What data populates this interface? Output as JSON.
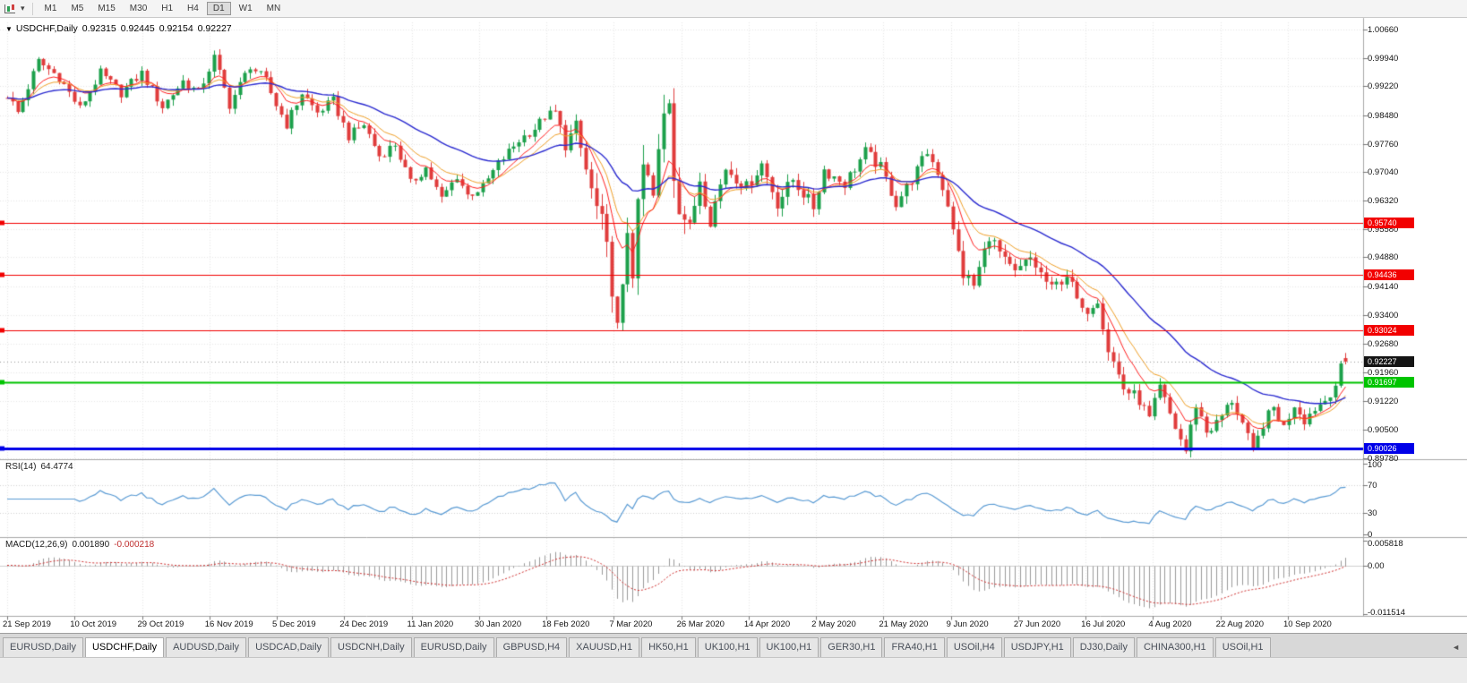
{
  "toolbar": {
    "timeframes": [
      "M1",
      "M5",
      "M15",
      "M30",
      "H1",
      "H4",
      "D1",
      "W1",
      "MN"
    ],
    "active_timeframe": "D1"
  },
  "chart_header": {
    "symbol": "USDCHF,Daily",
    "open": "0.92315",
    "high": "0.92445",
    "low": "0.92154",
    "close": "0.92227",
    "dropdown_glyph": "▼"
  },
  "rsi_panel": {
    "label": "RSI(14)",
    "value": "64.4774",
    "scale": [
      "100",
      "70",
      "30",
      "0"
    ]
  },
  "macd_panel": {
    "label": "MACD(12,26,9)",
    "value": "0.001890",
    "signal": "-0.000218",
    "scale": [
      "0.005818",
      "0.00",
      "-0.011514"
    ]
  },
  "price_axis": {
    "labels": [
      "1.00660",
      "0.99940",
      "0.99220",
      "0.98480",
      "0.97760",
      "0.97040",
      "0.96320",
      "0.95580",
      "0.94880",
      "0.94140",
      "0.93400",
      "0.92680",
      "0.91960",
      "0.91220",
      "0.90500",
      "0.89780"
    ]
  },
  "time_axis": {
    "labels": [
      "21 Sep 2019",
      "10 Oct 2019",
      "29 Oct 2019",
      "16 Nov 2019",
      "5 Dec 2019",
      "24 Dec 2019",
      "11 Jan 2020",
      "30 Jan 2020",
      "18 Feb 2020",
      "7 Mar 2020",
      "26 Mar 2020",
      "14 Apr 2020",
      "2 May 2020",
      "21 May 2020",
      "9 Jun 2020",
      "27 Jun 2020",
      "16 Jul 2020",
      "4 Aug 2020",
      "22 Aug 2020",
      "10 Sep 2020"
    ]
  },
  "levels": [
    {
      "value": "0.95740",
      "price": 0.9574,
      "color": "#f20000",
      "width": 1
    },
    {
      "value": "0.94436",
      "price": 0.94436,
      "color": "#f20000",
      "width": 1
    },
    {
      "value": "0.93024",
      "price": 0.93024,
      "color": "#f20000",
      "width": 1
    },
    {
      "value": "0.91697",
      "price": 0.91697,
      "color": "#00c400",
      "width": 2
    },
    {
      "value": "0.90026",
      "price": 0.90026,
      "color": "#0000e8",
      "width": 3
    }
  ],
  "current_price": {
    "value": "0.92227",
    "price": 0.92227,
    "color": "#141414"
  },
  "tabs": {
    "items": [
      "EURUSD,Daily",
      "USDCHF,Daily",
      "AUDUSD,Daily",
      "USDCAD,Daily",
      "USDCNH,Daily",
      "EURUSD,Daily",
      "GBPUSD,H4",
      "XAUUSD,H1",
      "HK50,H1",
      "UK100,H1",
      "UK100,H1",
      "GER30,H1",
      "FRA40,H1",
      "USOil,H4",
      "USDJPY,H1",
      "DJ30,Daily",
      "CHINA300,H1",
      "USOil,H1"
    ],
    "active_index": 1,
    "scroll_glyph": "◄"
  },
  "colors": {
    "bull": "#1ca04b",
    "bear": "#e03c3c",
    "ma_fast": "#ff2020",
    "ma_mid": "#f0a028",
    "ma_slow": "#2b2bd0",
    "rsi_line": "#5a9bd4",
    "rsi_levels": "#d4d4d4",
    "macd_hist": "#9a9a9a",
    "macd_signal": "#d03030",
    "grid": "#e7e7e7",
    "panel_border": "#a8a8a8",
    "tick": "#777777"
  },
  "chart_data": {
    "type": "candlestick",
    "title": "USDCHF,Daily",
    "symbol": "USDCHF",
    "timeframe": "Daily",
    "bars": 260,
    "x_range_labels": [
      "21 Sep 2019",
      "10 Sep 2020"
    ],
    "y_range": [
      0.8977,
      1.0084
    ],
    "last_bar": {
      "open": 0.92315,
      "high": 0.92445,
      "low": 0.92154,
      "close": 0.92227
    },
    "price_path_anchors": [
      [
        0,
        0.99
      ],
      [
        2,
        0.9855
      ],
      [
        6,
        0.9985
      ],
      [
        10,
        0.9945
      ],
      [
        14,
        0.9865
      ],
      [
        18,
        0.9955
      ],
      [
        22,
        0.9905
      ],
      [
        26,
        0.9955
      ],
      [
        30,
        0.987
      ],
      [
        34,
        0.9935
      ],
      [
        37,
        0.9905
      ],
      [
        40,
        0.9995
      ],
      [
        43,
        0.9875
      ],
      [
        47,
        0.9975
      ],
      [
        50,
        0.9935
      ],
      [
        52,
        0.9875
      ],
      [
        54,
        0.9825
      ],
      [
        57,
        0.9905
      ],
      [
        60,
        0.9855
      ],
      [
        63,
        0.9885
      ],
      [
        66,
        0.9795
      ],
      [
        69,
        0.9825
      ],
      [
        72,
        0.9745
      ],
      [
        75,
        0.9775
      ],
      [
        78,
        0.9675
      ],
      [
        81,
        0.9715
      ],
      [
        84,
        0.9635
      ],
      [
        87,
        0.9695
      ],
      [
        89,
        0.9645
      ],
      [
        92,
        0.9665
      ],
      [
        95,
        0.9725
      ],
      [
        99,
        0.9785
      ],
      [
        102,
        0.9815
      ],
      [
        104,
        0.9845
      ],
      [
        106,
        0.9855
      ],
      [
        108,
        0.9775
      ],
      [
        110,
        0.9815
      ],
      [
        113,
        0.9655
      ],
      [
        115,
        0.9565
      ],
      [
        117,
        0.9425
      ],
      [
        118,
        0.9295
      ],
      [
        119,
        0.9385
      ],
      [
        120,
        0.9565
      ],
      [
        121,
        0.9465
      ],
      [
        123,
        0.9715
      ],
      [
        125,
        0.9635
      ],
      [
        127,
        0.9845
      ],
      [
        128,
        0.9895
      ],
      [
        129,
        0.9705
      ],
      [
        130,
        0.9625
      ],
      [
        132,
        0.9555
      ],
      [
        134,
        0.969
      ],
      [
        136,
        0.9585
      ],
      [
        139,
        0.9715
      ],
      [
        143,
        0.9665
      ],
      [
        146,
        0.9725
      ],
      [
        149,
        0.9625
      ],
      [
        152,
        0.9685
      ],
      [
        156,
        0.9615
      ],
      [
        158,
        0.971
      ],
      [
        162,
        0.9675
      ],
      [
        166,
        0.9755
      ],
      [
        169,
        0.9715
      ],
      [
        172,
        0.9625
      ],
      [
        175,
        0.9685
      ],
      [
        178,
        0.9755
      ],
      [
        180,
        0.9705
      ],
      [
        182,
        0.9625
      ],
      [
        183,
        0.955
      ],
      [
        185,
        0.9445
      ],
      [
        187,
        0.9415
      ],
      [
        190,
        0.9545
      ],
      [
        193,
        0.9475
      ],
      [
        195,
        0.9445
      ],
      [
        198,
        0.9485
      ],
      [
        202,
        0.9405
      ],
      [
        205,
        0.9445
      ],
      [
        208,
        0.9345
      ],
      [
        211,
        0.9385
      ],
      [
        213,
        0.9255
      ],
      [
        216,
        0.9155
      ],
      [
        219,
        0.9125
      ],
      [
        221,
        0.9075
      ],
      [
        223,
        0.9155
      ],
      [
        226,
        0.9055
      ],
      [
        228,
        0.8995
      ],
      [
        230,
        0.9115
      ],
      [
        232,
        0.9045
      ],
      [
        234,
        0.9065
      ],
      [
        237,
        0.9125
      ],
      [
        239,
        0.9065
      ],
      [
        241,
        0.899
      ],
      [
        243,
        0.9065
      ],
      [
        245,
        0.9105
      ],
      [
        247,
        0.9055
      ],
      [
        249,
        0.9115
      ],
      [
        251,
        0.9075
      ],
      [
        253,
        0.9105
      ],
      [
        255,
        0.9125
      ],
      [
        257,
        0.9165
      ],
      [
        258,
        0.9205
      ],
      [
        259,
        0.9232
      ]
    ],
    "volatility_anchors": [
      [
        0,
        0.0035
      ],
      [
        105,
        0.0035
      ],
      [
        112,
        0.0075
      ],
      [
        116,
        0.011
      ],
      [
        122,
        0.013
      ],
      [
        128,
        0.012
      ],
      [
        132,
        0.0075
      ],
      [
        138,
        0.005
      ],
      [
        180,
        0.0042
      ],
      [
        186,
        0.006
      ],
      [
        192,
        0.0045
      ],
      [
        212,
        0.005
      ],
      [
        222,
        0.0045
      ],
      [
        259,
        0.0038
      ]
    ],
    "indicators": {
      "moving_averages": [
        {
          "type": "EMA",
          "period": 8,
          "color": "#ff2020"
        },
        {
          "type": "EMA",
          "period": 13,
          "color": "#f0a028"
        },
        {
          "type": "EMA",
          "period": 34,
          "color": "#2b2bd0"
        }
      ],
      "rsi": {
        "period": 14,
        "current": 64.4774,
        "levels": [
          70,
          30
        ]
      },
      "macd": {
        "fast": 12,
        "slow": 26,
        "signal": 9,
        "current_main": 0.00189,
        "current_signal": -0.000218
      }
    },
    "horizontal_levels": [
      0.9574,
      0.94436,
      0.93024,
      0.91697,
      0.90026
    ]
  }
}
